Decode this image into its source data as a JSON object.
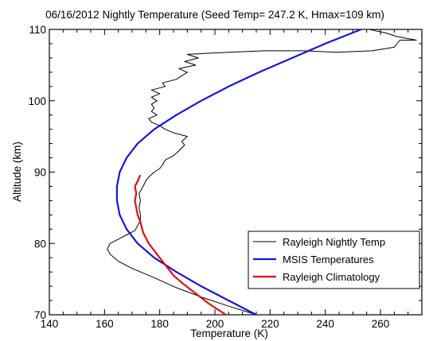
{
  "chart_data": {
    "type": "line",
    "title": "06/16/2012  Nightly Temperature  (Seed Temp= 247.2 K, Hmax=109 km)",
    "xlabel": "Temperature (K)",
    "ylabel": "Altitude (km)",
    "xlim": [
      140,
      275
    ],
    "ylim": [
      70,
      110
    ],
    "x_ticks": [
      140,
      160,
      180,
      200,
      220,
      240,
      260
    ],
    "y_ticks": [
      70,
      80,
      90,
      100,
      110
    ],
    "grid": false,
    "legend_position": "bottom-right",
    "series": [
      {
        "name": "Rayleigh Nightly Temp",
        "color": "#000000",
        "style": "thin",
        "points": [
          [
            215,
            70
          ],
          [
            205,
            71.2
          ],
          [
            195,
            72.5
          ],
          [
            186,
            73.8
          ],
          [
            178,
            75.2
          ],
          [
            170,
            76.5
          ],
          [
            165,
            77.5
          ],
          [
            162,
            78.5
          ],
          [
            161,
            79.2
          ],
          [
            162,
            80
          ],
          [
            165,
            80.6
          ],
          [
            168,
            81.2
          ],
          [
            171,
            81.8
          ],
          [
            172,
            82.5
          ],
          [
            173,
            83.2
          ],
          [
            173,
            84
          ],
          [
            172.5,
            85
          ],
          [
            173,
            86
          ],
          [
            172.5,
            87
          ],
          [
            174,
            88
          ],
          [
            175,
            88.8
          ],
          [
            176,
            89.3
          ],
          [
            178,
            90
          ],
          [
            180,
            90.5
          ],
          [
            181,
            91
          ],
          [
            182,
            91.7
          ],
          [
            185,
            92.3
          ],
          [
            187,
            93
          ],
          [
            189,
            93.8
          ],
          [
            188,
            94.3
          ],
          [
            190,
            95
          ],
          [
            185,
            95.5
          ],
          [
            182,
            96
          ],
          [
            180,
            96.5
          ],
          [
            177,
            97
          ],
          [
            176,
            97.5
          ],
          [
            179,
            98
          ],
          [
            177,
            98.5
          ],
          [
            178,
            99
          ],
          [
            177,
            99.5
          ],
          [
            179,
            100
          ],
          [
            177,
            100.5
          ],
          [
            180,
            101
          ],
          [
            177,
            101.5
          ],
          [
            182,
            102
          ],
          [
            181,
            102.5
          ],
          [
            186,
            103
          ],
          [
            188,
            103.5
          ],
          [
            190,
            104
          ],
          [
            187,
            104.5
          ],
          [
            193,
            105
          ],
          [
            189,
            105.5
          ],
          [
            194,
            106
          ],
          [
            190,
            106.5
          ],
          [
            205,
            106.8
          ],
          [
            218,
            107
          ],
          [
            232,
            107
          ],
          [
            244,
            106.8
          ],
          [
            257,
            107
          ],
          [
            265,
            107.5
          ],
          [
            267,
            108.5
          ],
          [
            273,
            108.5
          ],
          [
            266,
            109
          ],
          [
            262,
            109.5
          ],
          [
            256,
            110
          ]
        ]
      },
      {
        "name": "MSIS Temperatures",
        "color": "#1515e0",
        "style": "thick",
        "points": [
          [
            215,
            70
          ],
          [
            205,
            72
          ],
          [
            195,
            74
          ],
          [
            186,
            76
          ],
          [
            178,
            78
          ],
          [
            172,
            80
          ],
          [
            168,
            82
          ],
          [
            165.5,
            84
          ],
          [
            164.5,
            86
          ],
          [
            164.5,
            88
          ],
          [
            165.5,
            90
          ],
          [
            168,
            92
          ],
          [
            172,
            94
          ],
          [
            178,
            96
          ],
          [
            186,
            98
          ],
          [
            195,
            100
          ],
          [
            205,
            102
          ],
          [
            216,
            104
          ],
          [
            228,
            106
          ],
          [
            240,
            108
          ],
          [
            253,
            110
          ]
        ]
      },
      {
        "name": "Rayleigh Climatology",
        "color": "#e01010",
        "style": "thick",
        "points": [
          [
            204,
            70
          ],
          [
            198,
            71.5
          ],
          [
            193,
            73
          ],
          [
            188,
            74.5
          ],
          [
            185,
            75.5
          ],
          [
            182,
            77
          ],
          [
            179,
            78.5
          ],
          [
            176,
            80
          ],
          [
            174,
            81.5
          ],
          [
            173,
            83
          ],
          [
            172,
            84
          ],
          [
            171.5,
            85
          ],
          [
            171,
            86
          ],
          [
            171.5,
            87
          ],
          [
            171,
            88
          ],
          [
            172,
            88.7
          ],
          [
            172.5,
            89.2
          ],
          [
            173,
            89.6
          ]
        ]
      }
    ]
  }
}
